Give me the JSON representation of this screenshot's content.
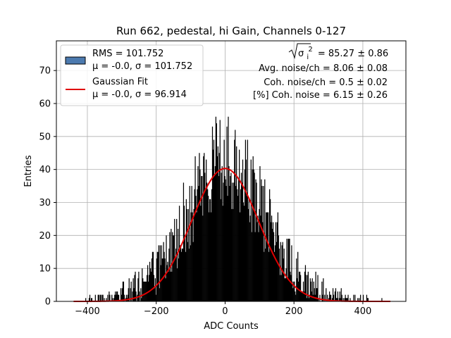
{
  "chart_data": {
    "type": "histogram",
    "title": "Run 662, pedestal, hi Gain, Channels 0-127",
    "xlabel": "ADC Counts",
    "ylabel": "Entries",
    "xlim": [
      -490,
      525
    ],
    "ylim": [
      0,
      79
    ],
    "xticks": [
      -400,
      -200,
      0,
      200,
      400
    ],
    "xtick_labels": [
      "−400",
      "−200",
      "0",
      "200",
      "400"
    ],
    "yticks": [
      0,
      10,
      20,
      30,
      40,
      50,
      60,
      70
    ],
    "ytick_labels": [
      "0",
      "10",
      "20",
      "30",
      "40",
      "50",
      "60",
      "70"
    ],
    "grid": true,
    "legend_position": "top-left",
    "histogram": {
      "name": "RMS = 101.752",
      "stats": "μ = -0.0, σ = 101.752",
      "color": "#000000",
      "legend_color": "#4c7aaf",
      "bin_width": 2,
      "data_range": [
        -450,
        480
      ],
      "mean": 0.0,
      "sigma": 101.752,
      "peak_entries": 56,
      "profile_points": [
        [
          -440,
          0
        ],
        [
          -400,
          0.3
        ],
        [
          -350,
          1
        ],
        [
          -300,
          1.8
        ],
        [
          -250,
          5
        ],
        [
          -200,
          8
        ],
        [
          -150,
          17
        ],
        [
          -100,
          26
        ],
        [
          -50,
          35
        ],
        [
          0,
          40
        ],
        [
          50,
          35
        ],
        [
          100,
          26
        ],
        [
          150,
          17
        ],
        [
          200,
          8
        ],
        [
          250,
          5
        ],
        [
          300,
          1.8
        ],
        [
          350,
          1
        ],
        [
          400,
          0.3
        ],
        [
          480,
          0
        ]
      ]
    },
    "fit": {
      "name": "Gaussian Fit",
      "stats": "μ = -0.0, σ = 96.914",
      "color": "#e00000",
      "mean": 0.0,
      "sigma": 96.914,
      "amplitude": 40.3,
      "x_range": [
        -440,
        480
      ]
    },
    "annotations": {
      "sigma_i2_symbol": "σ",
      "sigma_i2_sub": "i",
      "sigma_i2_sup": "2",
      "sigma_i2_value": "= 85.27 ± 0.86",
      "avg_noise": "Avg. noise/ch = 8.06 ± 0.08",
      "coh_noise": "Coh. noise/ch = 0.5 ± 0.02",
      "coh_noise_pct": "[%] Coh. noise = 6.15 ± 0.26"
    }
  }
}
